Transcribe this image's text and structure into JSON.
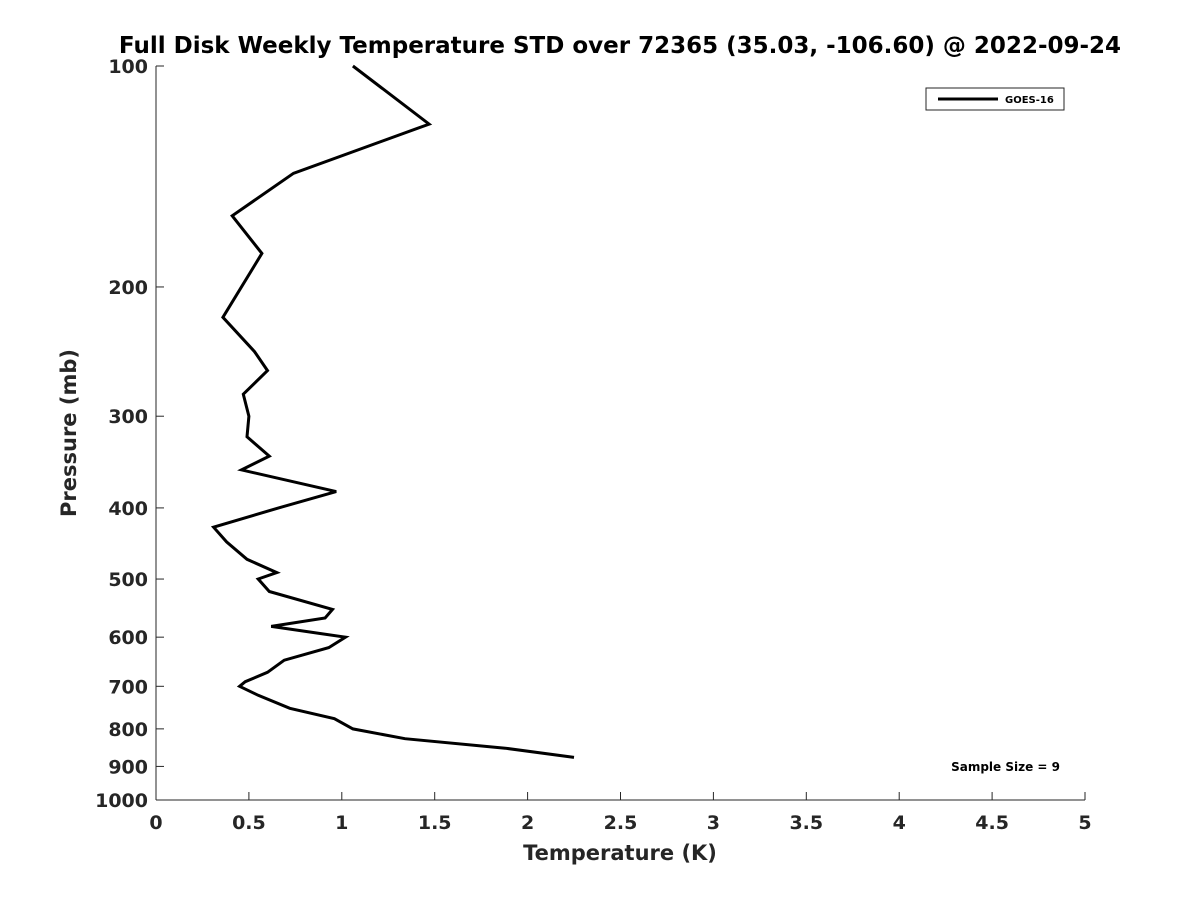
{
  "chart_data": {
    "type": "line",
    "title": "Full Disk Weekly Temperature STD over 72365 (35.03, -106.60) @ 2022-09-24",
    "xlabel": "Temperature (K)",
    "ylabel": "Pressure (mb)",
    "xlim": [
      0,
      5
    ],
    "ylim": [
      100,
      1000
    ],
    "y_scale": "log",
    "y_reversed": true,
    "x_ticks": [
      "0",
      "0.5",
      "1",
      "1.5",
      "2",
      "2.5",
      "3",
      "3.5",
      "4",
      "4.5",
      "5"
    ],
    "y_ticks": [
      "100",
      "200",
      "300",
      "400",
      "500",
      "600",
      "700",
      "800",
      "900",
      "1000"
    ],
    "grid": false,
    "legend": {
      "position": "top-right",
      "entries": [
        "GOES-16"
      ]
    },
    "annotation": "Sample Size = 9",
    "series": [
      {
        "name": "GOES-16",
        "color": "#000000",
        "points": [
          {
            "x": 1.06,
            "y": 100
          },
          {
            "x": 1.47,
            "y": 120
          },
          {
            "x": 0.74,
            "y": 140
          },
          {
            "x": 0.41,
            "y": 160
          },
          {
            "x": 0.57,
            "y": 180
          },
          {
            "x": 0.36,
            "y": 220
          },
          {
            "x": 0.53,
            "y": 245
          },
          {
            "x": 0.6,
            "y": 260
          },
          {
            "x": 0.47,
            "y": 280
          },
          {
            "x": 0.5,
            "y": 300
          },
          {
            "x": 0.49,
            "y": 320
          },
          {
            "x": 0.61,
            "y": 340
          },
          {
            "x": 0.46,
            "y": 355
          },
          {
            "x": 0.97,
            "y": 380
          },
          {
            "x": 0.66,
            "y": 400
          },
          {
            "x": 0.31,
            "y": 425
          },
          {
            "x": 0.38,
            "y": 445
          },
          {
            "x": 0.49,
            "y": 470
          },
          {
            "x": 0.65,
            "y": 490
          },
          {
            "x": 0.55,
            "y": 500
          },
          {
            "x": 0.61,
            "y": 520
          },
          {
            "x": 0.95,
            "y": 550
          },
          {
            "x": 0.91,
            "y": 565
          },
          {
            "x": 0.62,
            "y": 580
          },
          {
            "x": 1.02,
            "y": 600
          },
          {
            "x": 0.93,
            "y": 620
          },
          {
            "x": 0.69,
            "y": 645
          },
          {
            "x": 0.6,
            "y": 670
          },
          {
            "x": 0.48,
            "y": 690
          },
          {
            "x": 0.45,
            "y": 700
          },
          {
            "x": 0.55,
            "y": 720
          },
          {
            "x": 0.72,
            "y": 750
          },
          {
            "x": 0.96,
            "y": 775
          },
          {
            "x": 1.06,
            "y": 800
          },
          {
            "x": 1.34,
            "y": 825
          },
          {
            "x": 1.88,
            "y": 850
          },
          {
            "x": 2.25,
            "y": 875
          }
        ]
      }
    ]
  }
}
